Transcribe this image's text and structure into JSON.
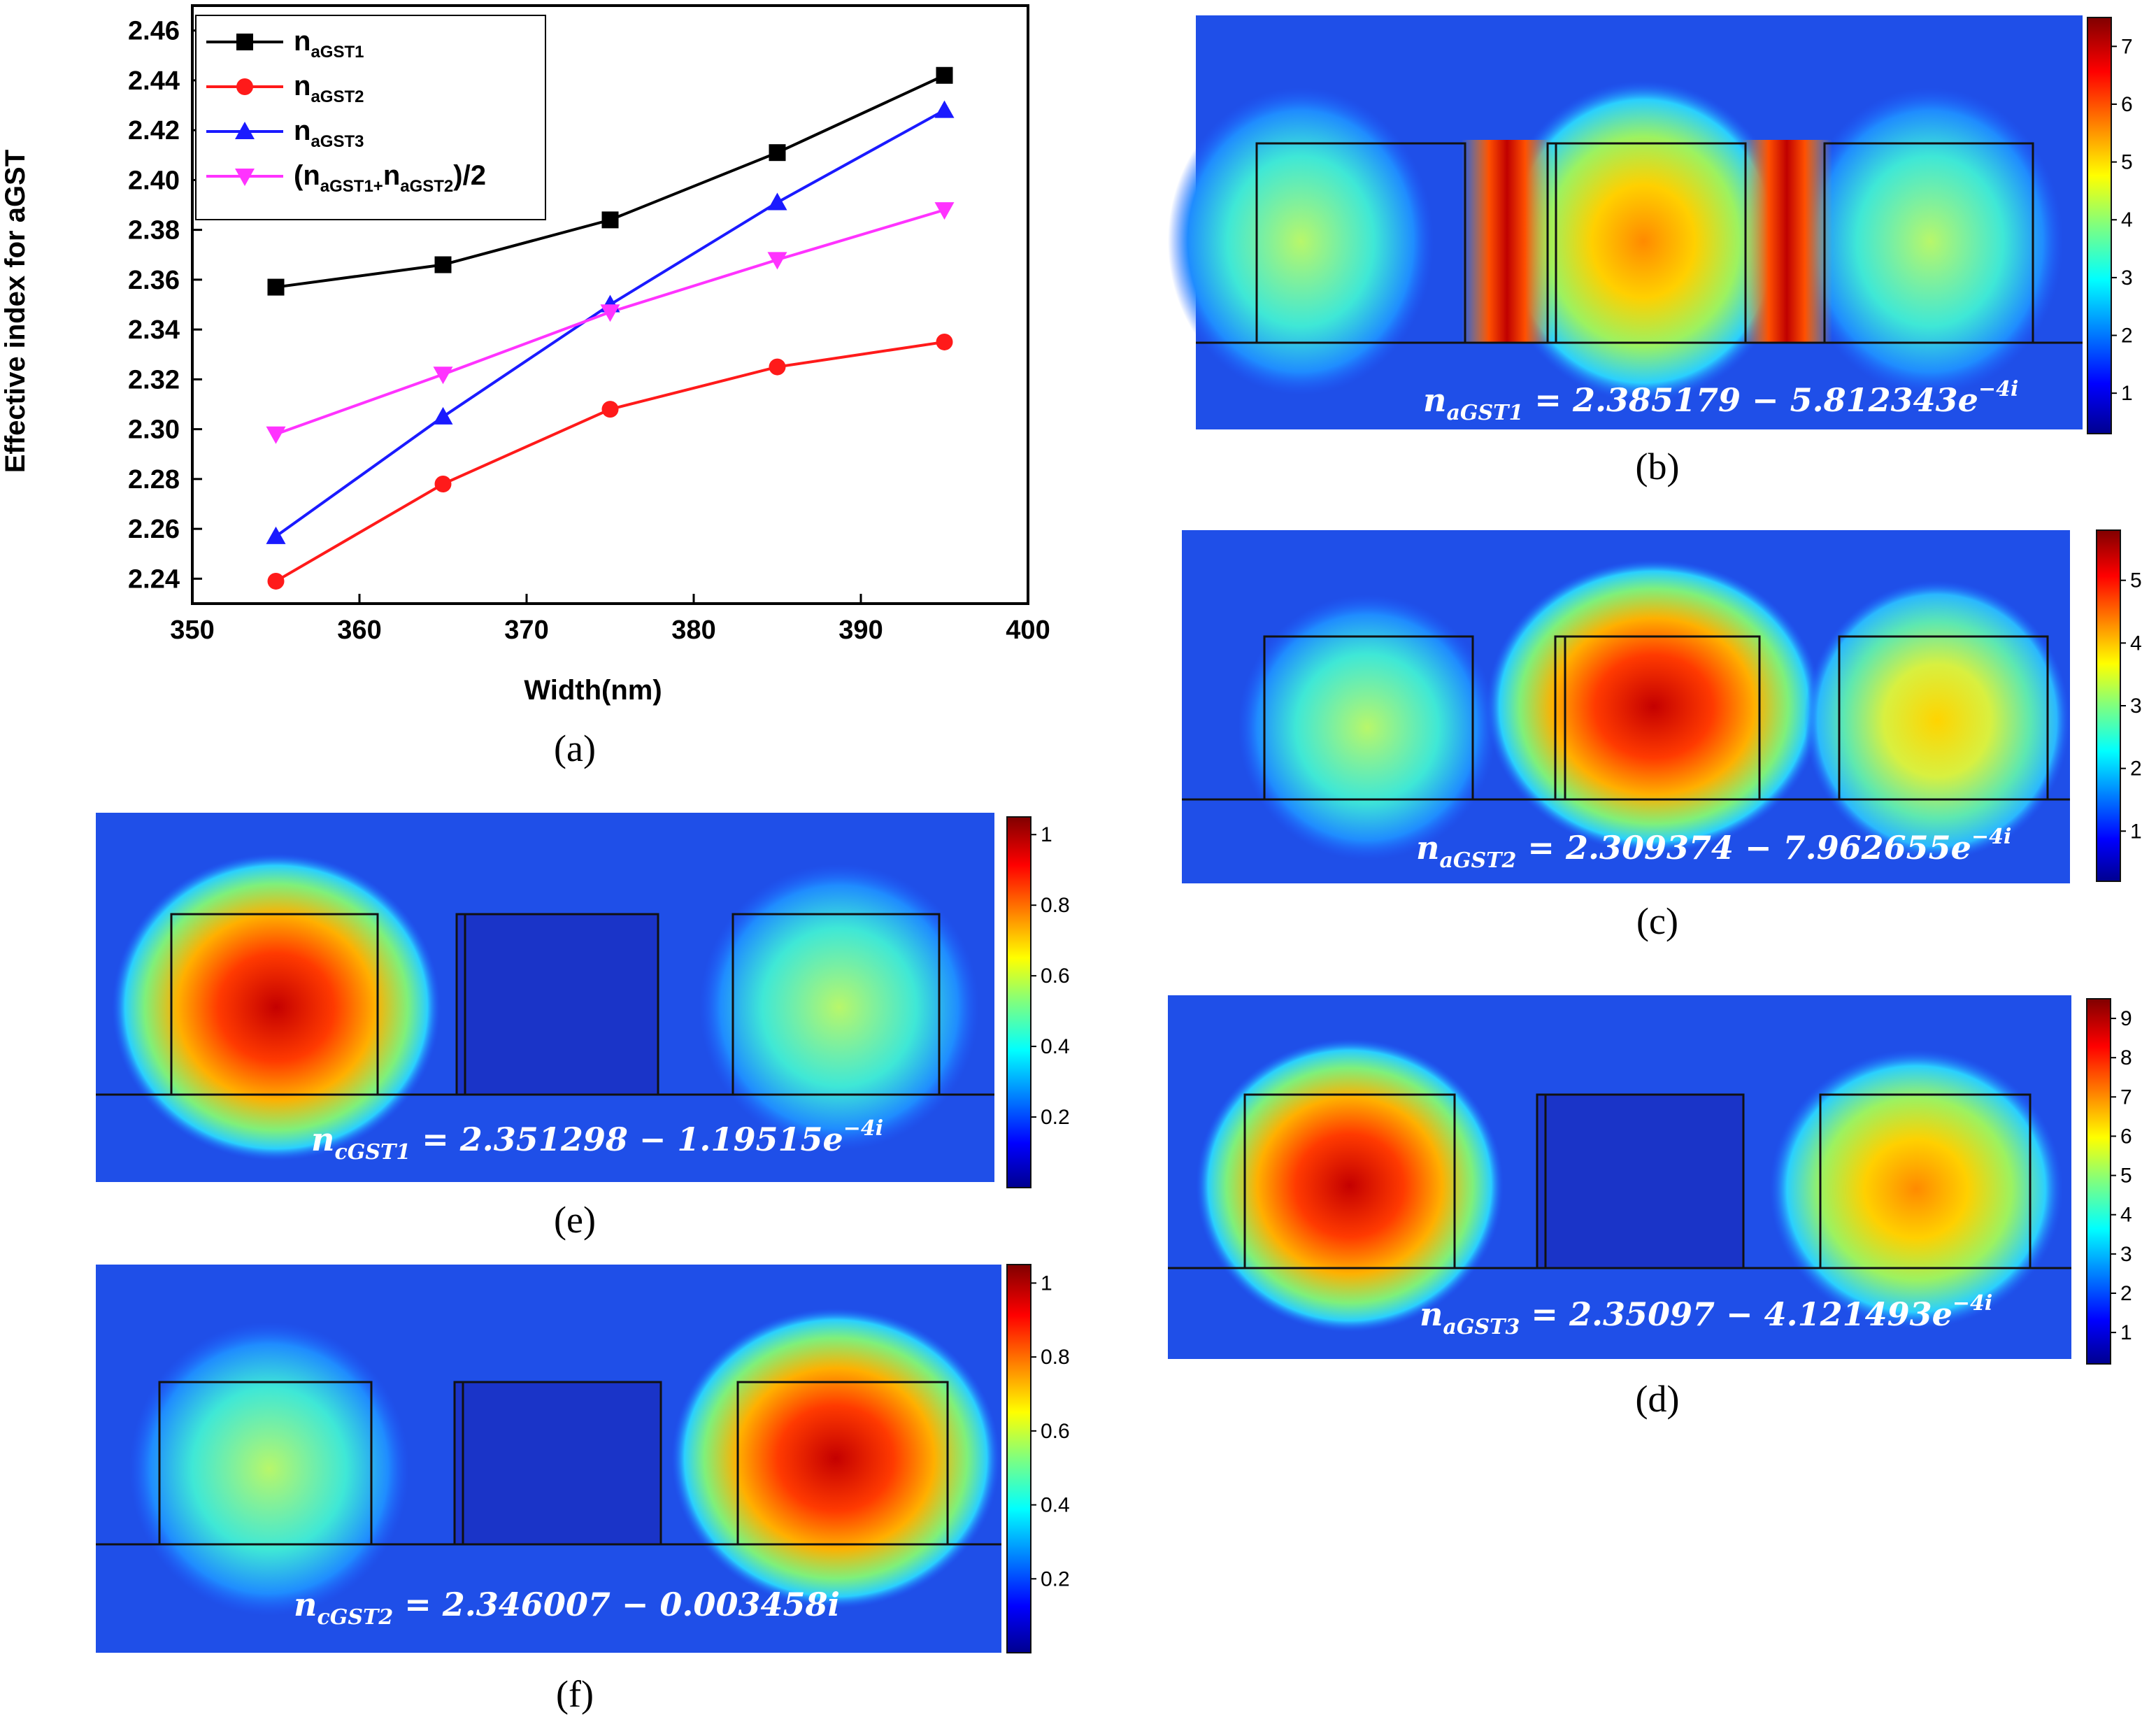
{
  "chart_data": {
    "type": "line",
    "panel": "(a)",
    "xlabel": "Width(nm)",
    "ylabel": "Effective index for aGST",
    "xlim": [
      350,
      400
    ],
    "ylim": [
      2.23,
      2.47
    ],
    "x_ticks": [
      "350",
      "360",
      "370",
      "380",
      "390",
      "400"
    ],
    "y_ticks": [
      "2.24",
      "2.26",
      "2.28",
      "2.30",
      "2.32",
      "2.34",
      "2.36",
      "2.38",
      "2.40",
      "2.42",
      "2.44",
      "2.46"
    ],
    "x": [
      355,
      365,
      375,
      385,
      395
    ],
    "series": [
      {
        "name": "n",
        "sub": "aGST1",
        "color": "#000000",
        "marker": "square",
        "values": [
          2.357,
          2.366,
          2.384,
          2.411,
          2.442
        ]
      },
      {
        "name": "n",
        "sub": "aGST2",
        "color": "#ff1a1a",
        "marker": "circle",
        "values": [
          2.239,
          2.278,
          2.308,
          2.325,
          2.335
        ]
      },
      {
        "name": "n",
        "sub": "aGST3",
        "color": "#1a1aff",
        "marker": "triangle-up",
        "values": [
          2.257,
          2.305,
          2.35,
          2.391,
          2.428
        ]
      },
      {
        "name": "(n",
        "sub": "aGST1+",
        "name2": "n",
        "sub2": "aGST2",
        "tail": ")/2",
        "color": "#ff33ff",
        "marker": "triangle-down",
        "values": [
          2.298,
          2.322,
          2.347,
          2.368,
          2.388
        ]
      }
    ]
  },
  "panels": {
    "a": {
      "caption": "(a)"
    },
    "b": {
      "caption": "(b)",
      "formula_n": "n",
      "formula_sub": "aGST1",
      "formula_body": " = 2.385179 − 5.812343",
      "formula_e": "e",
      "formula_exp": "−4i",
      "cbar_ticks": [
        "1",
        "2",
        "3",
        "4",
        "5",
        "6",
        "7"
      ]
    },
    "c": {
      "caption": "(c)",
      "formula_n": "n",
      "formula_sub": "aGST2",
      "formula_body": " = 2.309374 − 7.962655",
      "formula_e": "e",
      "formula_exp": "−4i",
      "cbar_ticks": [
        "1",
        "2",
        "3",
        "4",
        "5"
      ]
    },
    "d": {
      "caption": "(d)",
      "formula_n": "n",
      "formula_sub": "aGST3",
      "formula_body": " = 2.35097 − 4.121493",
      "formula_e": "e",
      "formula_exp": "−4i",
      "cbar_ticks": [
        "1",
        "2",
        "3",
        "4",
        "5",
        "6",
        "7",
        "8",
        "9"
      ]
    },
    "e": {
      "caption": "(e)",
      "formula_n": "n",
      "formula_sub": "cGST1",
      "formula_body": " = 2.351298 − 1.19515",
      "formula_e": "e",
      "formula_exp": "−4i",
      "cbar_ticks": [
        "0.2",
        "0.4",
        "0.6",
        "0.8",
        "1"
      ]
    },
    "f": {
      "caption": "(f)",
      "formula_n": "n",
      "formula_sub": "cGST2",
      "formula_body": " = 2.346007 − 0.003458i",
      "cbar_ticks": [
        "0.2",
        "0.4",
        "0.6",
        "0.8",
        "1"
      ]
    }
  }
}
